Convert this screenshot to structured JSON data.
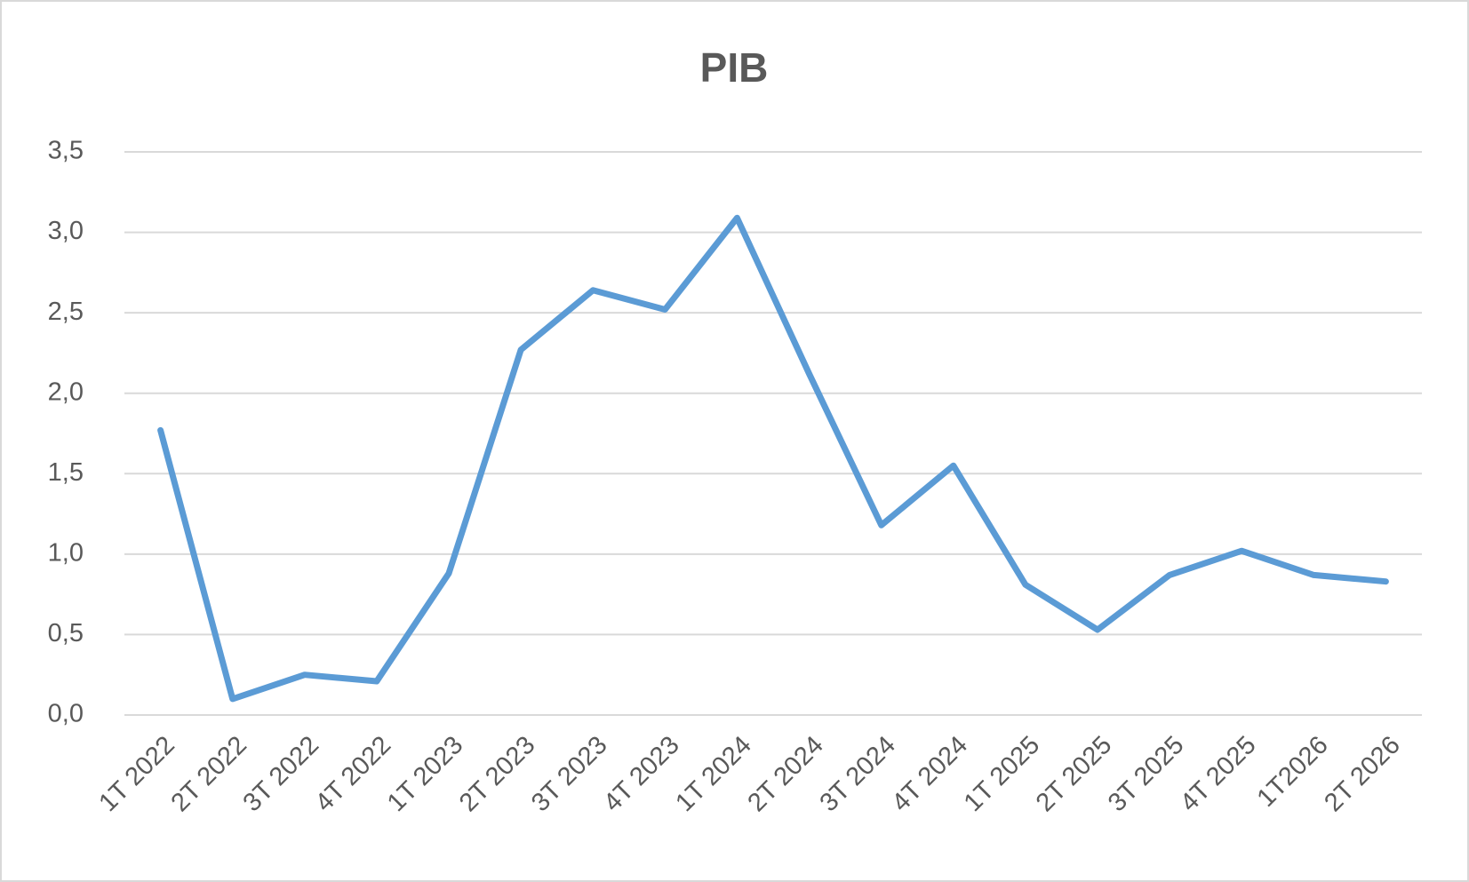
{
  "chart_data": {
    "type": "line",
    "title": "PIB",
    "categories": [
      "1T 2022",
      "2T 2022",
      "3T 2022",
      "4T 2022",
      "1T 2023",
      "2T 2023",
      "3T 2023",
      "4T 2023",
      "1T 2024",
      "2T 2024",
      "3T 2024",
      "4T 2024",
      "1T 2025",
      "2T 2025",
      "3T 2025",
      "4T 2025",
      "1T2026",
      "2T 2026"
    ],
    "values": [
      1.77,
      0.1,
      0.25,
      0.21,
      0.88,
      2.27,
      2.64,
      2.52,
      3.09,
      2.12,
      1.18,
      1.55,
      0.81,
      0.53,
      0.87,
      1.02,
      0.87,
      0.83
    ],
    "color": "#5b9bd5",
    "ylim": [
      0,
      3.5
    ],
    "yticks": [
      {
        "value": 0,
        "label": "0,0"
      },
      {
        "value": 0.5,
        "label": "0,5"
      },
      {
        "value": 1,
        "label": "1,0"
      },
      {
        "value": 1.5,
        "label": "1,5"
      },
      {
        "value": 2,
        "label": "2,0"
      },
      {
        "value": 2.5,
        "label": "2,5"
      },
      {
        "value": 3,
        "label": "3,0"
      },
      {
        "value": 3.5,
        "label": "3,5"
      }
    ],
    "grid": true
  }
}
